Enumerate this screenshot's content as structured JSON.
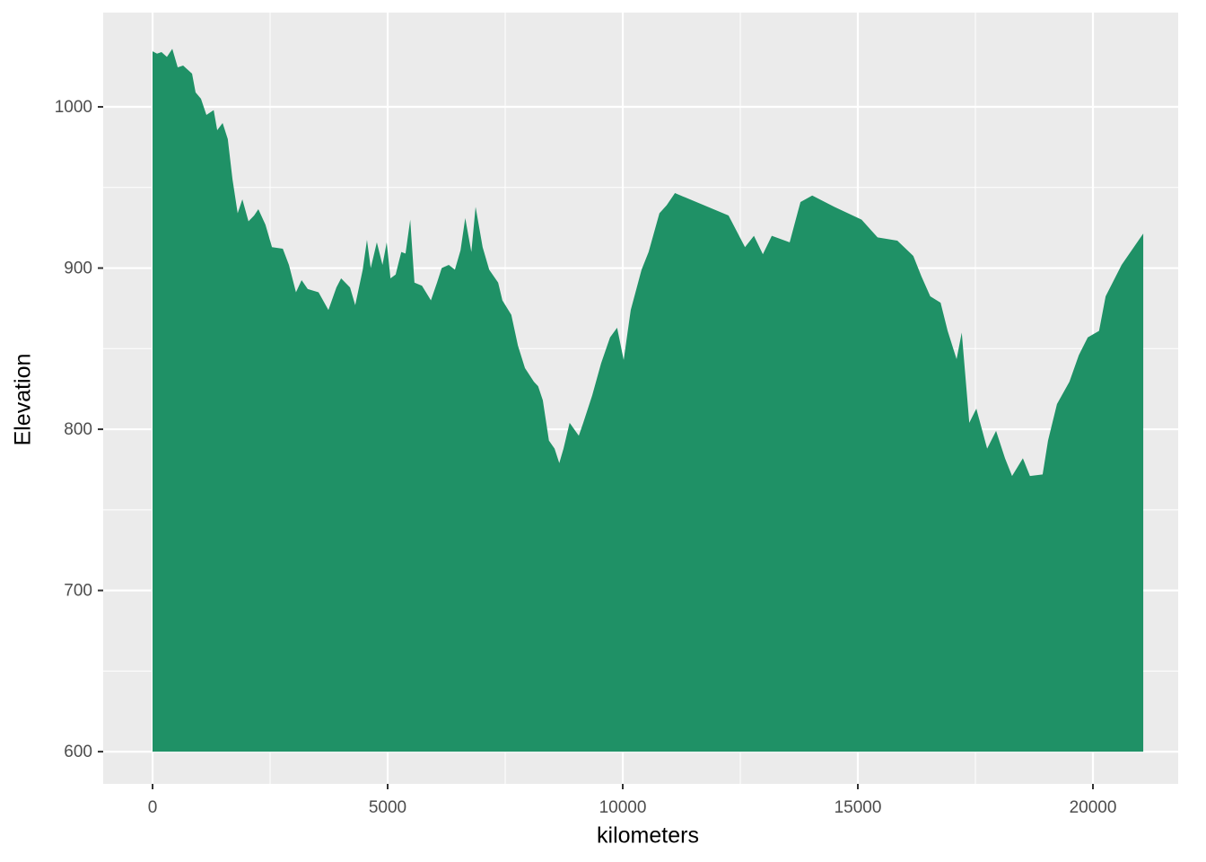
{
  "chart_data": {
    "type": "area",
    "x_label": "kilometers",
    "y_label": "Elevation",
    "color": "#1f9166",
    "baseline": 600,
    "xlim": [
      -1050,
      21813
    ],
    "ylim": [
      580,
      1058.5
    ],
    "xticks": [
      0,
      5000,
      10000,
      15000,
      20000
    ],
    "yticks": [
      600,
      700,
      800,
      900,
      1000
    ],
    "minor_xticks": [
      2500,
      7500,
      12500,
      17500
    ],
    "minor_yticks": [
      650,
      750,
      850,
      950
    ],
    "grid": true,
    "x": [
      0,
      95,
      190,
      305,
      420,
      535,
      650,
      840,
      915,
      1030,
      1145,
      1300,
      1375,
      1490,
      1600,
      1700,
      1810,
      1910,
      2040,
      2160,
      2250,
      2400,
      2540,
      2770,
      2900,
      3050,
      3170,
      3300,
      3530,
      3740,
      3910,
      4010,
      4200,
      4310,
      4470,
      4560,
      4640,
      4770,
      4890,
      4980,
      5060,
      5170,
      5290,
      5380,
      5480,
      5570,
      5730,
      5920,
      6050,
      6150,
      6300,
      6430,
      6550,
      6650,
      6780,
      6870,
      7020,
      7160,
      7350,
      7440,
      7630,
      7770,
      7920,
      8110,
      8200,
      8300,
      8430,
      8550,
      8650,
      8740,
      8870,
      9065,
      9160,
      9350,
      9540,
      9730,
      9880,
      10020,
      10170,
      10400,
      10550,
      10780,
      10935,
      11110,
      12250,
      12600,
      12790,
      12980,
      13170,
      13550,
      13780,
      14030,
      14500,
      15080,
      15420,
      15840,
      16180,
      16350,
      16540,
      16760,
      16910,
      17100,
      17210,
      17370,
      17520,
      17750,
      17940,
      18130,
      18280,
      18510,
      18660,
      18930,
      19045,
      19235,
      19500,
      19700,
      19890,
      20130,
      20270,
      20610,
      21070
    ],
    "values": [
      1034.5,
      1033,
      1034,
      1031,
      1036,
      1024.5,
      1025.6,
      1020.6,
      1009,
      1005,
      995,
      998,
      985.5,
      990,
      980,
      955,
      934,
      942.6,
      929,
      932.6,
      936.5,
      927,
      913,
      912,
      902,
      885,
      892.5,
      887,
      885,
      874,
      888,
      893.6,
      888,
      877,
      899,
      917.5,
      900,
      916,
      902,
      916,
      893.6,
      896,
      910,
      909,
      930,
      891,
      889,
      880,
      891,
      900,
      902,
      899,
      911,
      931,
      910,
      938,
      913,
      899,
      891,
      880,
      871,
      852,
      838,
      829.5,
      826.7,
      818,
      793,
      788,
      779,
      788,
      804,
      796,
      804,
      821,
      841,
      857,
      863,
      843,
      874,
      899,
      910,
      934,
      939,
      946.5,
      932.6,
      913,
      920,
      908.6,
      920,
      916,
      941,
      945,
      938,
      930,
      919,
      917,
      907.5,
      895,
      882.5,
      878.5,
      861,
      843.5,
      860,
      804,
      812.8,
      788,
      799,
      782,
      771,
      782,
      771,
      772,
      793,
      815.6,
      829.5,
      846,
      857,
      861,
      882.5,
      902,
      921.4
    ]
  }
}
